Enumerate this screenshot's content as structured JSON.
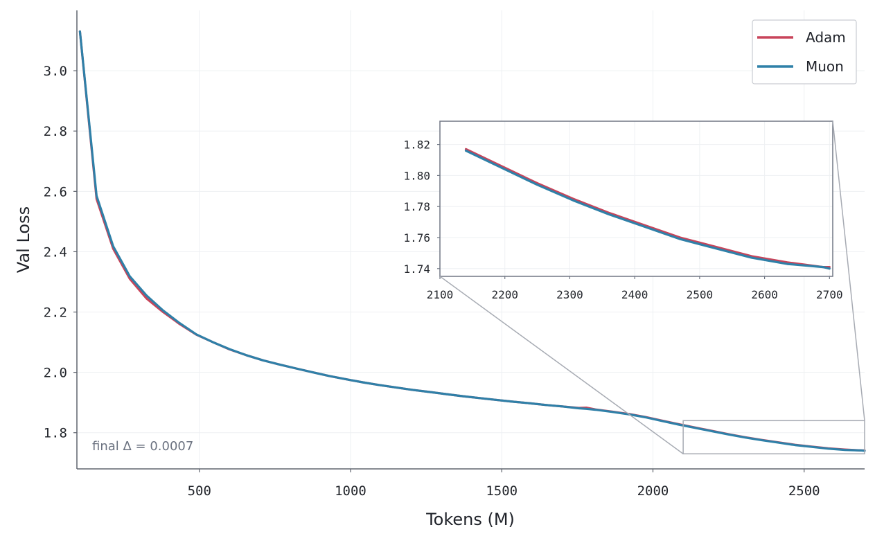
{
  "chart_data": {
    "type": "line",
    "xlabel": "Tokens (M)",
    "ylabel": "Val Loss",
    "xlim": [
      95,
      2700
    ],
    "ylim": [
      1.68,
      3.2
    ],
    "xticks": [
      500,
      1000,
      1500,
      2000,
      2500
    ],
    "yticks": [
      1.8,
      2.0,
      2.2,
      2.4,
      2.6,
      2.8,
      3.0
    ],
    "grid": true,
    "legend_position": "top-right",
    "colors": {
      "Adam": "#c8445a",
      "Muon": "#2f80a8"
    },
    "series": [
      {
        "name": "Adam",
        "x": [
          105,
          160,
          215,
          270,
          325,
          380,
          435,
          490,
          545,
          600,
          655,
          710,
          765,
          820,
          875,
          930,
          985,
          1040,
          1095,
          1150,
          1205,
          1260,
          1315,
          1370,
          1425,
          1480,
          1535,
          1590,
          1645,
          1700,
          1755,
          1780,
          1810,
          1865,
          1920,
          1975,
          2030,
          2085,
          2140,
          2195,
          2250,
          2305,
          2360,
          2415,
          2470,
          2525,
          2580,
          2635,
          2690,
          2700
        ],
        "values": [
          3.13,
          2.575,
          2.41,
          2.31,
          2.245,
          2.2,
          2.16,
          2.125,
          2.1,
          2.076,
          2.057,
          2.04,
          2.026,
          2.013,
          2.0,
          1.988,
          1.977,
          1.967,
          1.958,
          1.95,
          1.942,
          1.935,
          1.928,
          1.921,
          1.915,
          1.909,
          1.903,
          1.898,
          1.892,
          1.887,
          1.882,
          1.883,
          1.877,
          1.87,
          1.862,
          1.852,
          1.84,
          1.828,
          1.817,
          1.806,
          1.795,
          1.785,
          1.776,
          1.768,
          1.76,
          1.754,
          1.748,
          1.744,
          1.741,
          1.741
        ]
      },
      {
        "name": "Muon",
        "x": [
          105,
          160,
          215,
          270,
          325,
          380,
          435,
          490,
          545,
          600,
          655,
          710,
          765,
          820,
          875,
          930,
          985,
          1040,
          1095,
          1150,
          1205,
          1260,
          1315,
          1370,
          1425,
          1480,
          1535,
          1590,
          1645,
          1700,
          1755,
          1780,
          1810,
          1865,
          1920,
          1975,
          2030,
          2085,
          2140,
          2195,
          2250,
          2305,
          2360,
          2415,
          2470,
          2525,
          2580,
          2635,
          2690,
          2700
        ],
        "values": [
          3.13,
          2.585,
          2.418,
          2.318,
          2.255,
          2.205,
          2.163,
          2.126,
          2.1,
          2.077,
          2.057,
          2.04,
          2.026,
          2.013,
          2.0,
          1.988,
          1.977,
          1.967,
          1.958,
          1.95,
          1.942,
          1.935,
          1.928,
          1.921,
          1.915,
          1.909,
          1.903,
          1.898,
          1.892,
          1.887,
          1.881,
          1.879,
          1.876,
          1.869,
          1.861,
          1.851,
          1.839,
          1.827,
          1.816,
          1.805,
          1.794,
          1.784,
          1.775,
          1.767,
          1.759,
          1.753,
          1.747,
          1.743,
          1.741,
          1.74
        ]
      }
    ],
    "annotation": "final Δ = 0.0007",
    "inset": {
      "xlim": [
        2100,
        2705
      ],
      "ylim": [
        1.735,
        1.835
      ],
      "xticks": [
        2100,
        2200,
        2300,
        2400,
        2500,
        2600,
        2700
      ],
      "yticks": [
        1.74,
        1.76,
        1.78,
        1.8,
        1.82
      ],
      "source_region": {
        "x": [
          2100,
          2700
        ],
        "y": [
          1.73,
          1.84
        ]
      }
    }
  }
}
